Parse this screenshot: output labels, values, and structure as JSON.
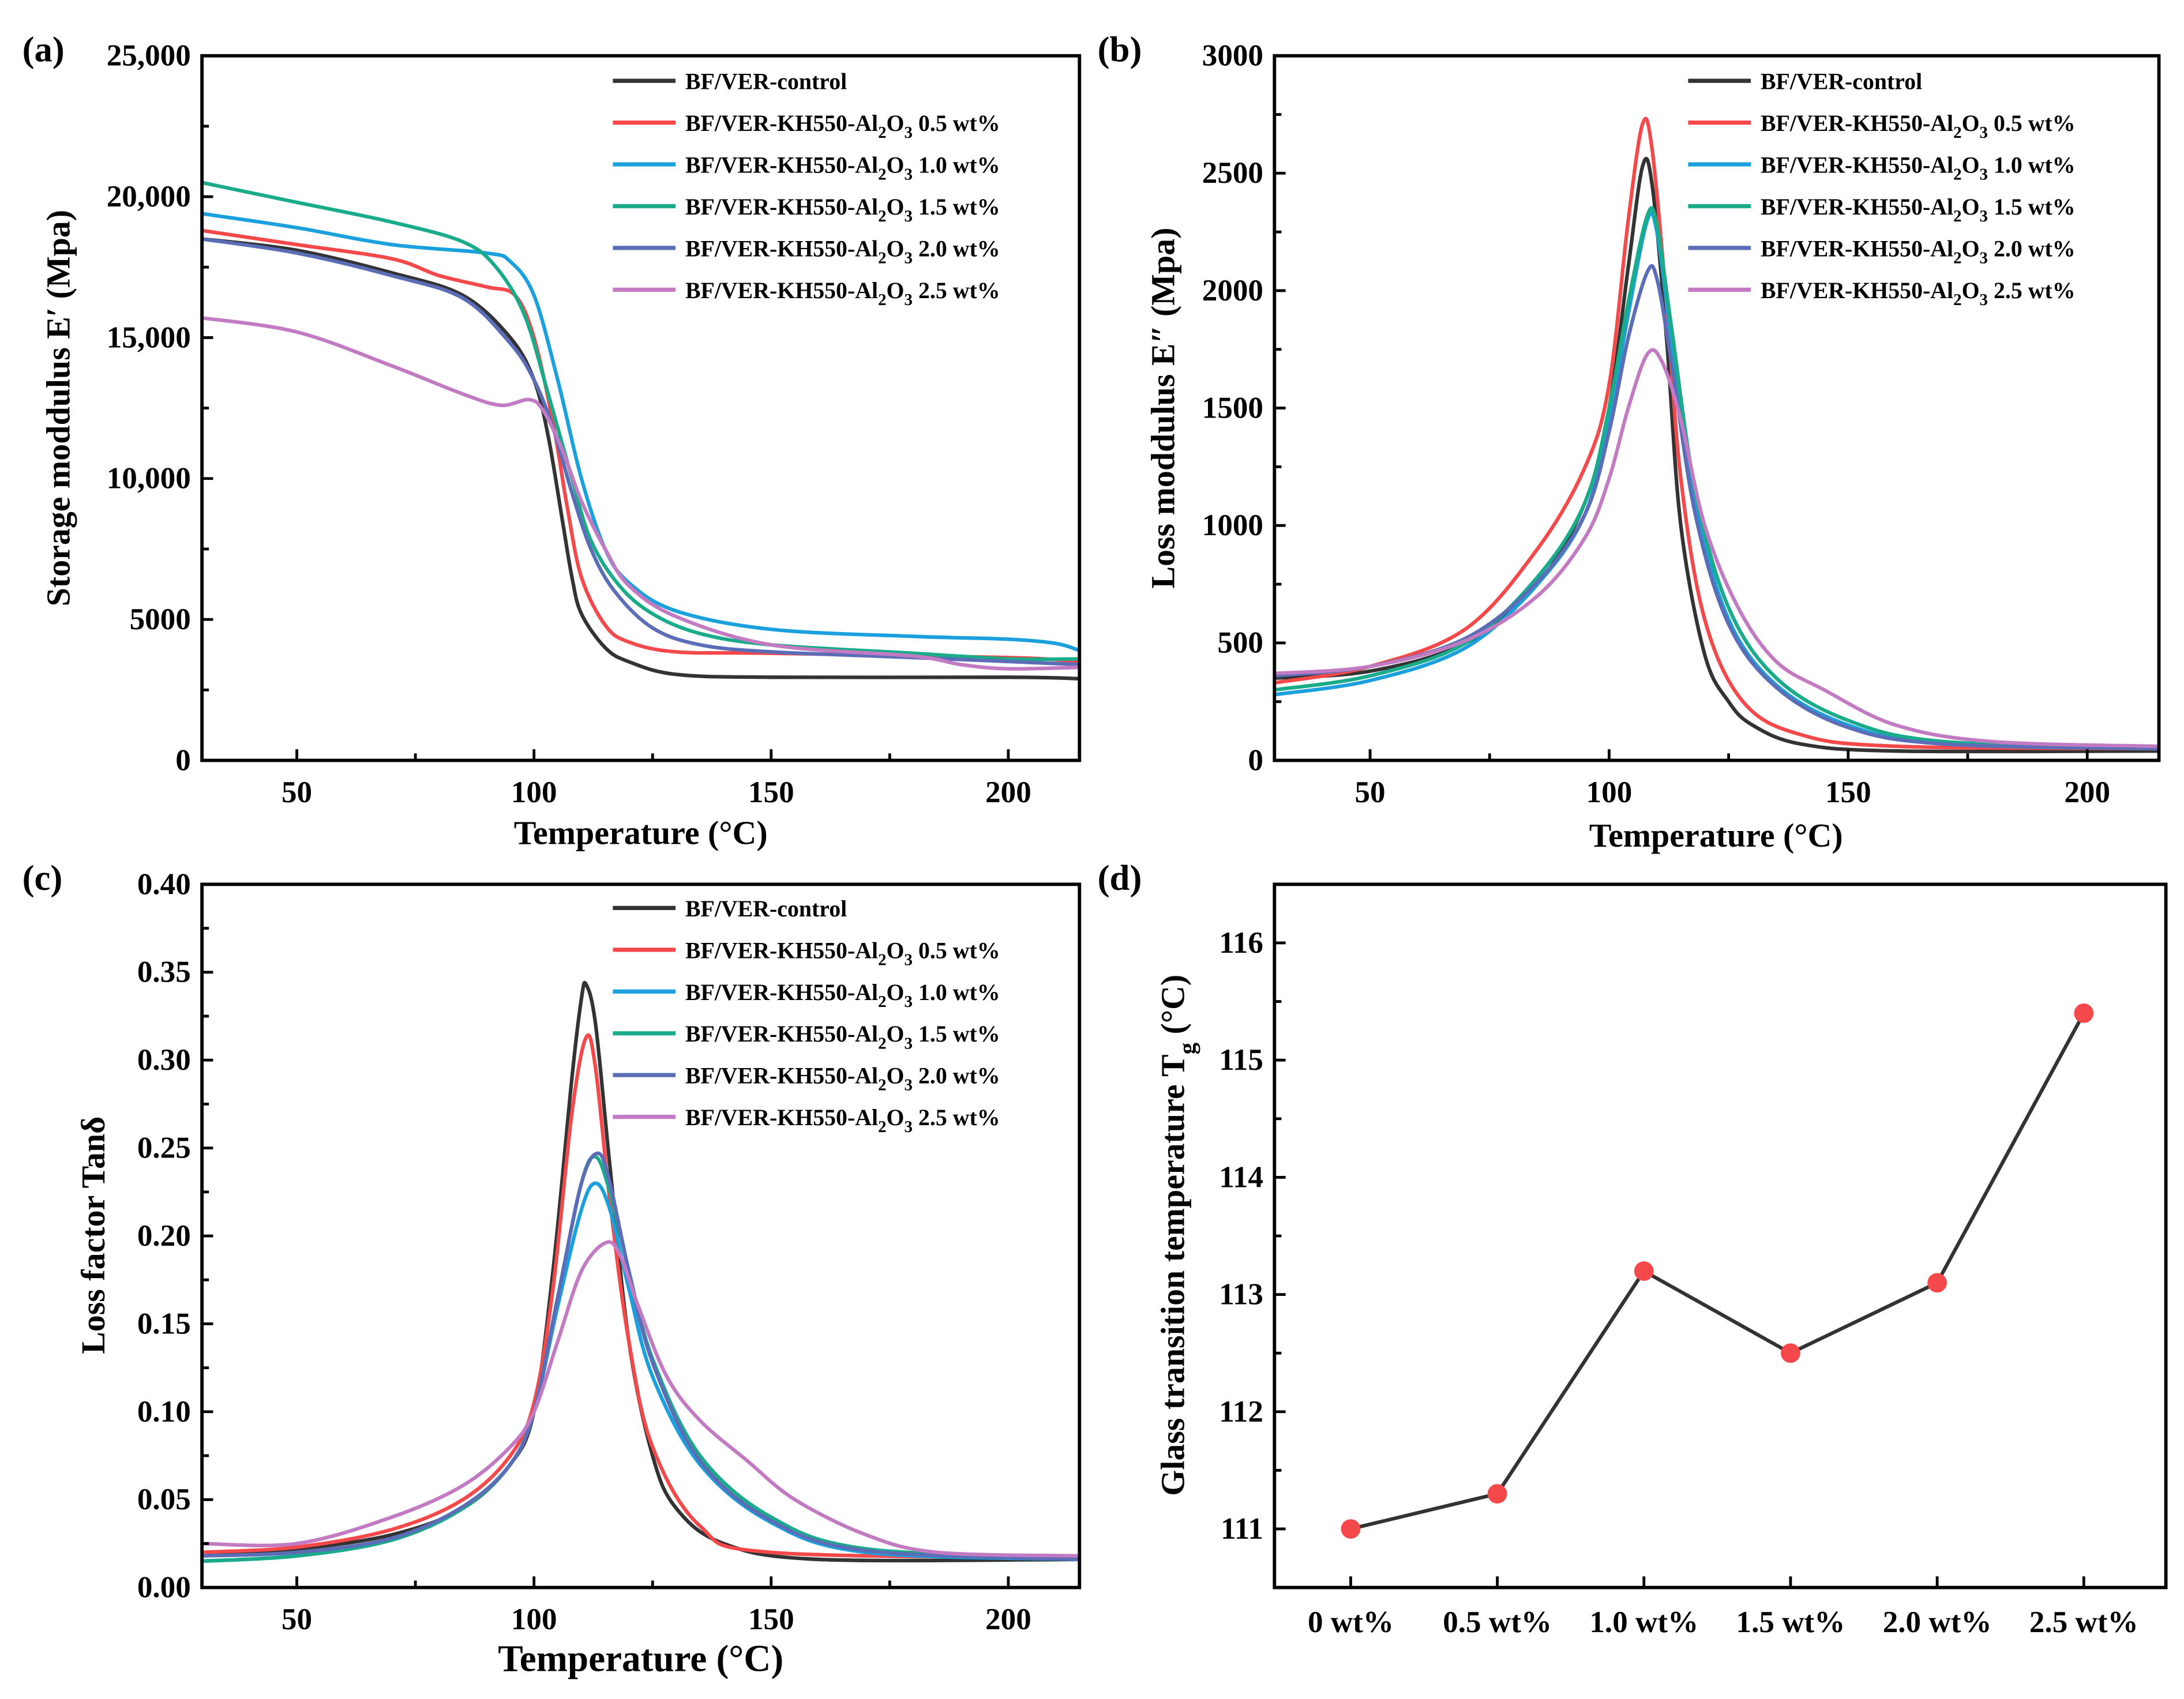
{
  "colors": {
    "control": "#333333",
    "w05": "#f5484a",
    "w10": "#1aa0dc",
    "w15": "#1aab8a",
    "w20": "#5b6db7",
    "w25": "#c27bc3",
    "marker": "#f5484a"
  },
  "legend": [
    {
      "key": "control",
      "prefix": "BF/VER-control"
    },
    {
      "key": "w05",
      "prefix": "BF/VER-KH550-Al",
      "s1": "2",
      "mid": "O",
      "s2": "3",
      "suffix": " 0.5 wt%"
    },
    {
      "key": "w10",
      "prefix": "BF/VER-KH550-Al",
      "s1": "2",
      "mid": "O",
      "s2": "3",
      "suffix": " 1.0 wt%"
    },
    {
      "key": "w15",
      "prefix": "BF/VER-KH550-Al",
      "s1": "2",
      "mid": "O",
      "s2": "3",
      "suffix": " 1.5 wt%"
    },
    {
      "key": "w20",
      "prefix": "BF/VER-KH550-Al",
      "s1": "2",
      "mid": "O",
      "s2": "3",
      "suffix": " 2.0 wt%"
    },
    {
      "key": "w25",
      "prefix": "BF/VER-KH550-Al",
      "s1": "2",
      "mid": "O",
      "s2": "3",
      "suffix": " 2.5 wt%"
    }
  ],
  "chart_data": [
    {
      "panel": "(a)",
      "type": "line",
      "xlabel": "Temperature (°C)",
      "ylabel": "Storage moddulus E′ (Mpa)",
      "xlim": [
        30,
        215
      ],
      "ylim": [
        0,
        25000
      ],
      "xticks": [
        50,
        100,
        150,
        200
      ],
      "xtick_labels": [
        "50",
        "100",
        "150",
        "200"
      ],
      "yticks": [
        0,
        5000,
        10000,
        15000,
        20000,
        25000
      ],
      "ytick_labels": [
        "0",
        "5000",
        "10,000",
        "15,000",
        "20,000",
        "25,000"
      ],
      "legend": "top-right",
      "series": [
        {
          "key": "control",
          "x": [
            30,
            50,
            70,
            85,
            95,
            100,
            103,
            106,
            108,
            110,
            115,
            120,
            130,
            150,
            200,
            215
          ],
          "y": [
            18500,
            18100,
            17300,
            16500,
            15000,
            13500,
            11500,
            8500,
            6500,
            5200,
            4000,
            3500,
            3050,
            2950,
            2950,
            2900
          ]
        },
        {
          "key": "w05",
          "x": [
            30,
            50,
            70,
            80,
            90,
            96,
            100,
            104,
            107,
            110,
            115,
            120,
            130,
            150,
            200,
            215
          ],
          "y": [
            18800,
            18300,
            17800,
            17200,
            16800,
            16500,
            15000,
            12000,
            9000,
            6500,
            4800,
            4200,
            3850,
            3800,
            3650,
            3500
          ]
        },
        {
          "key": "w10",
          "x": [
            30,
            50,
            70,
            90,
            95,
            100,
            105,
            110,
            115,
            120,
            130,
            150,
            180,
            200,
            210,
            215
          ],
          "y": [
            19400,
            18900,
            18300,
            18000,
            17700,
            16500,
            13500,
            10000,
            7500,
            6300,
            5300,
            4650,
            4400,
            4300,
            4150,
            3900
          ]
        },
        {
          "key": "w15",
          "x": [
            30,
            50,
            70,
            85,
            92,
            98,
            103,
            108,
            112,
            118,
            125,
            135,
            150,
            180,
            200,
            215
          ],
          "y": [
            20500,
            19800,
            19100,
            18400,
            17500,
            15800,
            13000,
            10000,
            7800,
            6200,
            5200,
            4500,
            4100,
            3800,
            3600,
            3600
          ]
        },
        {
          "key": "w20",
          "x": [
            30,
            50,
            70,
            85,
            95,
            100,
            104,
            108,
            112,
            117,
            125,
            135,
            150,
            180,
            215
          ],
          "y": [
            18500,
            18000,
            17200,
            16400,
            14800,
            13500,
            11800,
            9500,
            7500,
            6000,
            4700,
            4100,
            3850,
            3650,
            3400
          ]
        },
        {
          "key": "w25",
          "x": [
            30,
            50,
            70,
            85,
            93,
            99,
            102,
            106,
            110,
            115,
            120,
            130,
            150,
            180,
            190,
            200,
            215
          ],
          "y": [
            15700,
            15200,
            14000,
            13000,
            12600,
            12800,
            12400,
            11000,
            9200,
            7500,
            6200,
            5100,
            4100,
            3700,
            3400,
            3250,
            3300
          ]
        }
      ]
    },
    {
      "panel": "(b)",
      "type": "line",
      "xlabel": "Temperature (°C)",
      "ylabel": "Loss moddulus E″ (Mpa)",
      "xlim": [
        30,
        215
      ],
      "ylim": [
        0,
        3000
      ],
      "xticks": [
        50,
        100,
        150,
        200
      ],
      "xtick_labels": [
        "50",
        "100",
        "150",
        "200"
      ],
      "yticks": [
        0,
        500,
        1000,
        1500,
        2000,
        2500,
        3000
      ],
      "ytick_labels": [
        "0",
        "500",
        "1000",
        "1500",
        "2000",
        "2500",
        "3000"
      ],
      "legend": "top-right",
      "series": [
        {
          "key": "control",
          "x": [
            30,
            50,
            70,
            85,
            95,
            100,
            104,
            107,
            109,
            112,
            115,
            120,
            125,
            130,
            140,
            160,
            215
          ],
          "y": [
            350,
            380,
            500,
            750,
            1100,
            1500,
            2100,
            2530,
            2450,
            1800,
            1000,
            450,
            250,
            150,
            70,
            40,
            40
          ]
        },
        {
          "key": "w05",
          "x": [
            30,
            50,
            70,
            85,
            95,
            100,
            104,
            107,
            109,
            112,
            115,
            120,
            128,
            140,
            160,
            215
          ],
          "y": [
            330,
            400,
            560,
            900,
            1250,
            1600,
            2300,
            2710,
            2600,
            1950,
            1200,
            600,
            250,
            110,
            60,
            50
          ]
        },
        {
          "key": "w10",
          "x": [
            30,
            50,
            70,
            85,
            95,
            100,
            104,
            108,
            110,
            113,
            118,
            125,
            135,
            150,
            170,
            215
          ],
          "y": [
            280,
            340,
            480,
            750,
            1050,
            1450,
            1900,
            2300,
            2250,
            1800,
            1100,
            600,
            320,
            150,
            70,
            50
          ]
        },
        {
          "key": "w15",
          "x": [
            30,
            50,
            70,
            85,
            95,
            100,
            104,
            108,
            110,
            113,
            118,
            125,
            135,
            150,
            170,
            215
          ],
          "y": [
            300,
            360,
            500,
            780,
            1100,
            1500,
            1950,
            2320,
            2280,
            1850,
            1150,
            650,
            350,
            170,
            80,
            55
          ]
        },
        {
          "key": "w20",
          "x": [
            30,
            50,
            70,
            85,
            95,
            100,
            104,
            108,
            110,
            113,
            118,
            125,
            135,
            150,
            170,
            215
          ],
          "y": [
            360,
            400,
            520,
            760,
            1050,
            1400,
            1800,
            2080,
            2050,
            1700,
            1050,
            580,
            310,
            140,
            70,
            50
          ]
        },
        {
          "key": "w25",
          "x": [
            30,
            50,
            70,
            85,
            95,
            100,
            104,
            108,
            111,
            115,
            120,
            127,
            135,
            145,
            160,
            180,
            215
          ],
          "y": [
            370,
            400,
            510,
            700,
            950,
            1200,
            1500,
            1730,
            1700,
            1450,
            1000,
            650,
            420,
            300,
            150,
            80,
            60
          ]
        }
      ]
    },
    {
      "panel": "(c)",
      "type": "line",
      "xlabel": "Temperature (°C)",
      "ylabel": "Loss factor Tanδ",
      "xlim": [
        30,
        215
      ],
      "ylim": [
        0,
        0.4
      ],
      "xticks": [
        50,
        100,
        150,
        200
      ],
      "xtick_labels": [
        "50",
        "100",
        "150",
        "200"
      ],
      "yticks": [
        0,
        0.05,
        0.1,
        0.15,
        0.2,
        0.25,
        0.3,
        0.35,
        0.4
      ],
      "ytick_labels": [
        "0.00",
        "0.05",
        "0.10",
        "0.15",
        "0.20",
        "0.25",
        "0.30",
        "0.35",
        "0.40"
      ],
      "legend": "top-right",
      "series": [
        {
          "key": "control",
          "x": [
            30,
            50,
            70,
            85,
            95,
            100,
            104,
            108,
            110,
            111,
            113,
            116,
            120,
            125,
            130,
            140,
            160,
            215
          ],
          "y": [
            0.02,
            0.022,
            0.03,
            0.045,
            0.07,
            0.1,
            0.18,
            0.29,
            0.335,
            0.343,
            0.32,
            0.24,
            0.14,
            0.075,
            0.045,
            0.025,
            0.016,
            0.016
          ]
        },
        {
          "key": "w05",
          "x": [
            30,
            50,
            70,
            85,
            95,
            100,
            104,
            108,
            111,
            113,
            116,
            120,
            125,
            135,
            150,
            215
          ],
          "y": [
            0.02,
            0.023,
            0.033,
            0.05,
            0.075,
            0.105,
            0.17,
            0.27,
            0.313,
            0.295,
            0.22,
            0.14,
            0.08,
            0.035,
            0.02,
            0.017
          ]
        },
        {
          "key": "w10",
          "x": [
            30,
            50,
            70,
            85,
            95,
            100,
            105,
            110,
            113,
            116,
            120,
            125,
            135,
            150,
            170,
            215
          ],
          "y": [
            0.015,
            0.018,
            0.027,
            0.045,
            0.07,
            0.1,
            0.16,
            0.215,
            0.23,
            0.215,
            0.17,
            0.12,
            0.07,
            0.037,
            0.02,
            0.016
          ]
        },
        {
          "key": "w15",
          "x": [
            30,
            50,
            70,
            85,
            95,
            100,
            105,
            110,
            113,
            116,
            120,
            125,
            135,
            150,
            170,
            215
          ],
          "y": [
            0.015,
            0.018,
            0.027,
            0.045,
            0.07,
            0.1,
            0.165,
            0.23,
            0.245,
            0.225,
            0.18,
            0.13,
            0.075,
            0.04,
            0.022,
            0.017
          ]
        },
        {
          "key": "w20",
          "x": [
            30,
            50,
            70,
            85,
            95,
            100,
            105,
            110,
            113.5,
            116,
            120,
            125,
            135,
            150,
            170,
            215
          ],
          "y": [
            0.018,
            0.02,
            0.028,
            0.046,
            0.07,
            0.1,
            0.165,
            0.23,
            0.247,
            0.23,
            0.18,
            0.128,
            0.072,
            0.038,
            0.021,
            0.016
          ]
        },
        {
          "key": "w25",
          "x": [
            30,
            50,
            70,
            85,
            95,
            100,
            105,
            110,
            115,
            118,
            122,
            128,
            135,
            145,
            155,
            170,
            185,
            215
          ],
          "y": [
            0.025,
            0.025,
            0.04,
            0.058,
            0.08,
            0.1,
            0.14,
            0.18,
            0.196,
            0.19,
            0.16,
            0.12,
            0.095,
            0.072,
            0.05,
            0.03,
            0.02,
            0.018
          ]
        }
      ]
    },
    {
      "panel": "(d)",
      "type": "line",
      "xlabel": "",
      "ylabel": "Glass transition temperature T",
      "ylabel_sub": "g",
      "ylabel_suffix": " (°C)",
      "categories": [
        "0 wt%",
        "0.5 wt%",
        "1.0 wt%",
        "1.5 wt%",
        "2.0 wt%",
        "2.5 wt%"
      ],
      "values": [
        111.0,
        111.3,
        113.2,
        112.5,
        113.1,
        115.4
      ],
      "ylim": [
        110.5,
        116.5
      ],
      "yticks": [
        111,
        112,
        113,
        114,
        115,
        116
      ],
      "ytick_labels": [
        "111",
        "112",
        "113",
        "114",
        "115",
        "116"
      ]
    }
  ]
}
